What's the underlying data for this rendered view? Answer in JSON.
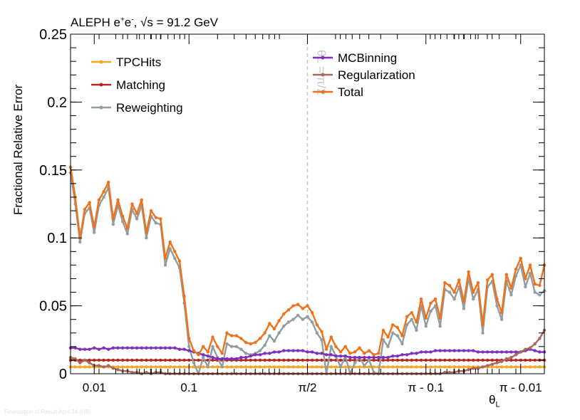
{
  "header": {
    "experiment": "ALEPH e",
    "charge_plus": "+",
    "e_minus": "e",
    "charge_minus": "-",
    "sep": ", ",
    "sqrt_s": "√s",
    "energy": " = 91.2 GeV"
  },
  "footer": "Finalization of Result April 24 (HB)",
  "chart_data": {
    "type": "line",
    "title": "",
    "xlabel_main": "θ",
    "xlabel_sub": "L",
    "ylabel": "Fractional Relative Error",
    "ylim": [
      0,
      0.25
    ],
    "yticks": [
      "0",
      "0.05",
      "0.1",
      "0.15",
      "0.2",
      "0.25"
    ],
    "ytick_values": [
      0,
      0.05,
      0.1,
      0.15,
      0.2,
      0.25
    ],
    "x_scale": "symmetric log in θ_L about π/2 (log θ_L below π/2, log(π − θ_L) above)",
    "xtick_labels": [
      "0.01",
      "0.1",
      "π/2",
      "π - 0.1",
      "π - 0.01"
    ],
    "xtick_frac": [
      0.05,
      0.25,
      0.5,
      0.75,
      0.95
    ],
    "reference_line": {
      "x_frac": 0.5,
      "label": "θL = π/2",
      "color": "#c8c8c8"
    },
    "legend": {
      "placement": "top-left and top-center, two columns"
    },
    "x_frac": [
      0.0,
      0.01,
      0.02,
      0.03,
      0.04,
      0.05,
      0.06,
      0.07,
      0.08,
      0.09,
      0.1,
      0.11,
      0.12,
      0.13,
      0.14,
      0.15,
      0.16,
      0.17,
      0.18,
      0.19,
      0.2,
      0.21,
      0.22,
      0.23,
      0.24,
      0.25,
      0.26,
      0.27,
      0.28,
      0.29,
      0.3,
      0.31,
      0.32,
      0.33,
      0.34,
      0.35,
      0.36,
      0.37,
      0.38,
      0.39,
      0.4,
      0.41,
      0.42,
      0.43,
      0.44,
      0.45,
      0.46,
      0.47,
      0.48,
      0.49,
      0.5,
      0.51,
      0.52,
      0.53,
      0.54,
      0.55,
      0.56,
      0.57,
      0.58,
      0.59,
      0.6,
      0.61,
      0.62,
      0.63,
      0.64,
      0.65,
      0.66,
      0.67,
      0.68,
      0.69,
      0.7,
      0.71,
      0.72,
      0.73,
      0.74,
      0.75,
      0.76,
      0.77,
      0.78,
      0.79,
      0.8,
      0.81,
      0.82,
      0.83,
      0.84,
      0.85,
      0.86,
      0.87,
      0.88,
      0.89,
      0.9,
      0.91,
      0.92,
      0.93,
      0.94,
      0.95,
      0.96,
      0.97,
      0.98,
      0.99,
      1.0
    ],
    "series": [
      {
        "name": "TPCHits",
        "color": "#f5a623",
        "values": [
          0.005,
          0.005,
          0.005,
          0.005,
          0.005,
          0.005,
          0.005,
          0.005,
          0.005,
          0.005,
          0.005,
          0.005,
          0.005,
          0.005,
          0.005,
          0.005,
          0.005,
          0.005,
          0.005,
          0.005,
          0.005,
          0.005,
          0.005,
          0.005,
          0.005,
          0.005,
          0.005,
          0.005,
          0.005,
          0.005,
          0.005,
          0.005,
          0.005,
          0.005,
          0.005,
          0.005,
          0.005,
          0.005,
          0.005,
          0.005,
          0.005,
          0.005,
          0.005,
          0.005,
          0.005,
          0.005,
          0.005,
          0.005,
          0.005,
          0.005,
          0.005,
          0.005,
          0.005,
          0.005,
          0.005,
          0.005,
          0.005,
          0.005,
          0.005,
          0.005,
          0.005,
          0.005,
          0.005,
          0.005,
          0.005,
          0.005,
          0.005,
          0.005,
          0.005,
          0.005,
          0.005,
          0.005,
          0.005,
          0.005,
          0.005,
          0.005,
          0.005,
          0.005,
          0.005,
          0.005,
          0.005,
          0.005,
          0.005,
          0.005,
          0.005,
          0.005,
          0.005,
          0.005,
          0.005,
          0.005,
          0.005,
          0.005,
          0.005,
          0.005,
          0.005,
          0.005,
          0.005,
          0.005,
          0.005,
          0.005,
          0.005
        ]
      },
      {
        "name": "Matching",
        "color": "#b5261e",
        "values": [
          0.01,
          0.01,
          0.01,
          0.01,
          0.01,
          0.01,
          0.01,
          0.01,
          0.01,
          0.01,
          0.01,
          0.01,
          0.01,
          0.01,
          0.01,
          0.01,
          0.01,
          0.01,
          0.01,
          0.01,
          0.01,
          0.01,
          0.01,
          0.01,
          0.01,
          0.01,
          0.01,
          0.01,
          0.01,
          0.01,
          0.01,
          0.01,
          0.01,
          0.01,
          0.01,
          0.01,
          0.01,
          0.01,
          0.01,
          0.01,
          0.01,
          0.01,
          0.01,
          0.01,
          0.01,
          0.01,
          0.01,
          0.01,
          0.01,
          0.01,
          0.01,
          0.01,
          0.01,
          0.01,
          0.01,
          0.01,
          0.01,
          0.01,
          0.01,
          0.01,
          0.01,
          0.01,
          0.01,
          0.01,
          0.01,
          0.01,
          0.01,
          0.01,
          0.01,
          0.01,
          0.01,
          0.01,
          0.01,
          0.01,
          0.01,
          0.01,
          0.01,
          0.01,
          0.01,
          0.01,
          0.01,
          0.01,
          0.01,
          0.01,
          0.01,
          0.01,
          0.01,
          0.01,
          0.01,
          0.01,
          0.01,
          0.01,
          0.01,
          0.01,
          0.01,
          0.01,
          0.01,
          0.01,
          0.01,
          0.01,
          0.01
        ]
      },
      {
        "name": "Reweighting",
        "color": "#8e9ea1",
        "values": [
          0.148,
          0.125,
          0.097,
          0.118,
          0.122,
          0.104,
          0.124,
          0.13,
          0.137,
          0.11,
          0.124,
          0.112,
          0.103,
          0.121,
          0.114,
          0.124,
          0.1,
          0.116,
          0.111,
          0.11,
          0.08,
          0.092,
          0.085,
          0.078,
          0.052,
          0.02,
          0.008,
          0.0,
          0.012,
          0.005,
          0.02,
          0.012,
          0.005,
          0.022,
          0.02,
          0.02,
          0.018,
          0.015,
          0.014,
          0.015,
          0.017,
          0.021,
          0.028,
          0.024,
          0.03,
          0.035,
          0.038,
          0.04,
          0.043,
          0.04,
          0.042,
          0.038,
          0.03,
          0.025,
          0.0,
          0.02,
          0.013,
          0.005,
          0.013,
          0.0,
          0.008,
          0.012,
          0.006,
          0.01,
          0.001,
          0.0,
          0.025,
          0.02,
          0.03,
          0.028,
          0.022,
          0.036,
          0.04,
          0.032,
          0.05,
          0.035,
          0.046,
          0.05,
          0.035,
          0.062,
          0.06,
          0.055,
          0.064,
          0.048,
          0.07,
          0.055,
          0.062,
          0.03,
          0.064,
          0.068,
          0.05,
          0.04,
          0.068,
          0.058,
          0.072,
          0.08,
          0.064,
          0.074,
          0.06,
          0.058,
          0.061
        ]
      },
      {
        "name": "MCBinning",
        "color": "#7e2fbd",
        "values": [
          0.019,
          0.019,
          0.018,
          0.018,
          0.018,
          0.019,
          0.018,
          0.019,
          0.018,
          0.019,
          0.019,
          0.019,
          0.019,
          0.019,
          0.019,
          0.019,
          0.019,
          0.019,
          0.019,
          0.019,
          0.019,
          0.019,
          0.019,
          0.018,
          0.018,
          0.017,
          0.016,
          0.015,
          0.014,
          0.013,
          0.012,
          0.011,
          0.011,
          0.011,
          0.011,
          0.011,
          0.012,
          0.012,
          0.013,
          0.014,
          0.014,
          0.015,
          0.015,
          0.016,
          0.016,
          0.017,
          0.017,
          0.017,
          0.017,
          0.017,
          0.016,
          0.016,
          0.015,
          0.015,
          0.014,
          0.014,
          0.013,
          0.013,
          0.013,
          0.012,
          0.012,
          0.012,
          0.012,
          0.012,
          0.012,
          0.012,
          0.012,
          0.012,
          0.013,
          0.013,
          0.014,
          0.014,
          0.015,
          0.015,
          0.016,
          0.016,
          0.016,
          0.017,
          0.017,
          0.017,
          0.017,
          0.017,
          0.017,
          0.017,
          0.017,
          0.017,
          0.016,
          0.016,
          0.016,
          0.016,
          0.016,
          0.016,
          0.016,
          0.016,
          0.016,
          0.016,
          0.017,
          0.018,
          0.017,
          0.016,
          0.016
        ]
      },
      {
        "name": "Regularization",
        "color": "#a9685a",
        "values": [
          0.012,
          0.011,
          0.008,
          0.01,
          0.008,
          0.006,
          0.006,
          0.005,
          0.006,
          0.004,
          0.003,
          0.002,
          0.002,
          0.001,
          0.001,
          0.0,
          0.001,
          0.0,
          0.001,
          0.001,
          0.0,
          0.0,
          0.0,
          0.0,
          0.0,
          0.0,
          0.0,
          0.0,
          0.0,
          0.0,
          0.0,
          0.0,
          0.0,
          0.0,
          0.0,
          0.0,
          0.0,
          0.0,
          0.0,
          0.0,
          0.0,
          0.0,
          0.0,
          0.0,
          0.0,
          0.0,
          0.0,
          0.0,
          0.0,
          0.0,
          0.0,
          0.0,
          0.0,
          0.0,
          0.0,
          0.0,
          0.0,
          0.0,
          0.0,
          0.0,
          0.0,
          0.0,
          0.0,
          0.0,
          0.0,
          0.0,
          0.0,
          0.0,
          0.0,
          0.0,
          0.0,
          0.0,
          0.0,
          0.0,
          0.0,
          0.0,
          0.0,
          0.0,
          0.0,
          0.001,
          0.001,
          0.001,
          0.002,
          0.002,
          0.003,
          0.004,
          0.004,
          0.005,
          0.006,
          0.007,
          0.008,
          0.009,
          0.011,
          0.012,
          0.014,
          0.016,
          0.018,
          0.019,
          0.022,
          0.026,
          0.032
        ]
      },
      {
        "name": "Total",
        "color": "#f0711a",
        "values": [
          0.152,
          0.13,
          0.1,
          0.121,
          0.126,
          0.108,
          0.128,
          0.134,
          0.141,
          0.114,
          0.128,
          0.116,
          0.107,
          0.125,
          0.118,
          0.128,
          0.104,
          0.12,
          0.115,
          0.114,
          0.085,
          0.097,
          0.09,
          0.083,
          0.057,
          0.026,
          0.017,
          0.014,
          0.02,
          0.016,
          0.027,
          0.02,
          0.015,
          0.03,
          0.028,
          0.028,
          0.026,
          0.023,
          0.022,
          0.023,
          0.026,
          0.03,
          0.037,
          0.033,
          0.039,
          0.044,
          0.047,
          0.05,
          0.051,
          0.048,
          0.05,
          0.045,
          0.036,
          0.031,
          0.018,
          0.027,
          0.02,
          0.016,
          0.02,
          0.015,
          0.016,
          0.019,
          0.015,
          0.017,
          0.014,
          0.015,
          0.032,
          0.027,
          0.036,
          0.034,
          0.028,
          0.042,
          0.045,
          0.038,
          0.055,
          0.041,
          0.052,
          0.055,
          0.041,
          0.067,
          0.065,
          0.06,
          0.069,
          0.053,
          0.075,
          0.06,
          0.067,
          0.036,
          0.069,
          0.073,
          0.055,
          0.045,
          0.073,
          0.063,
          0.077,
          0.085,
          0.07,
          0.08,
          0.066,
          0.065,
          0.08
        ]
      }
    ]
  }
}
